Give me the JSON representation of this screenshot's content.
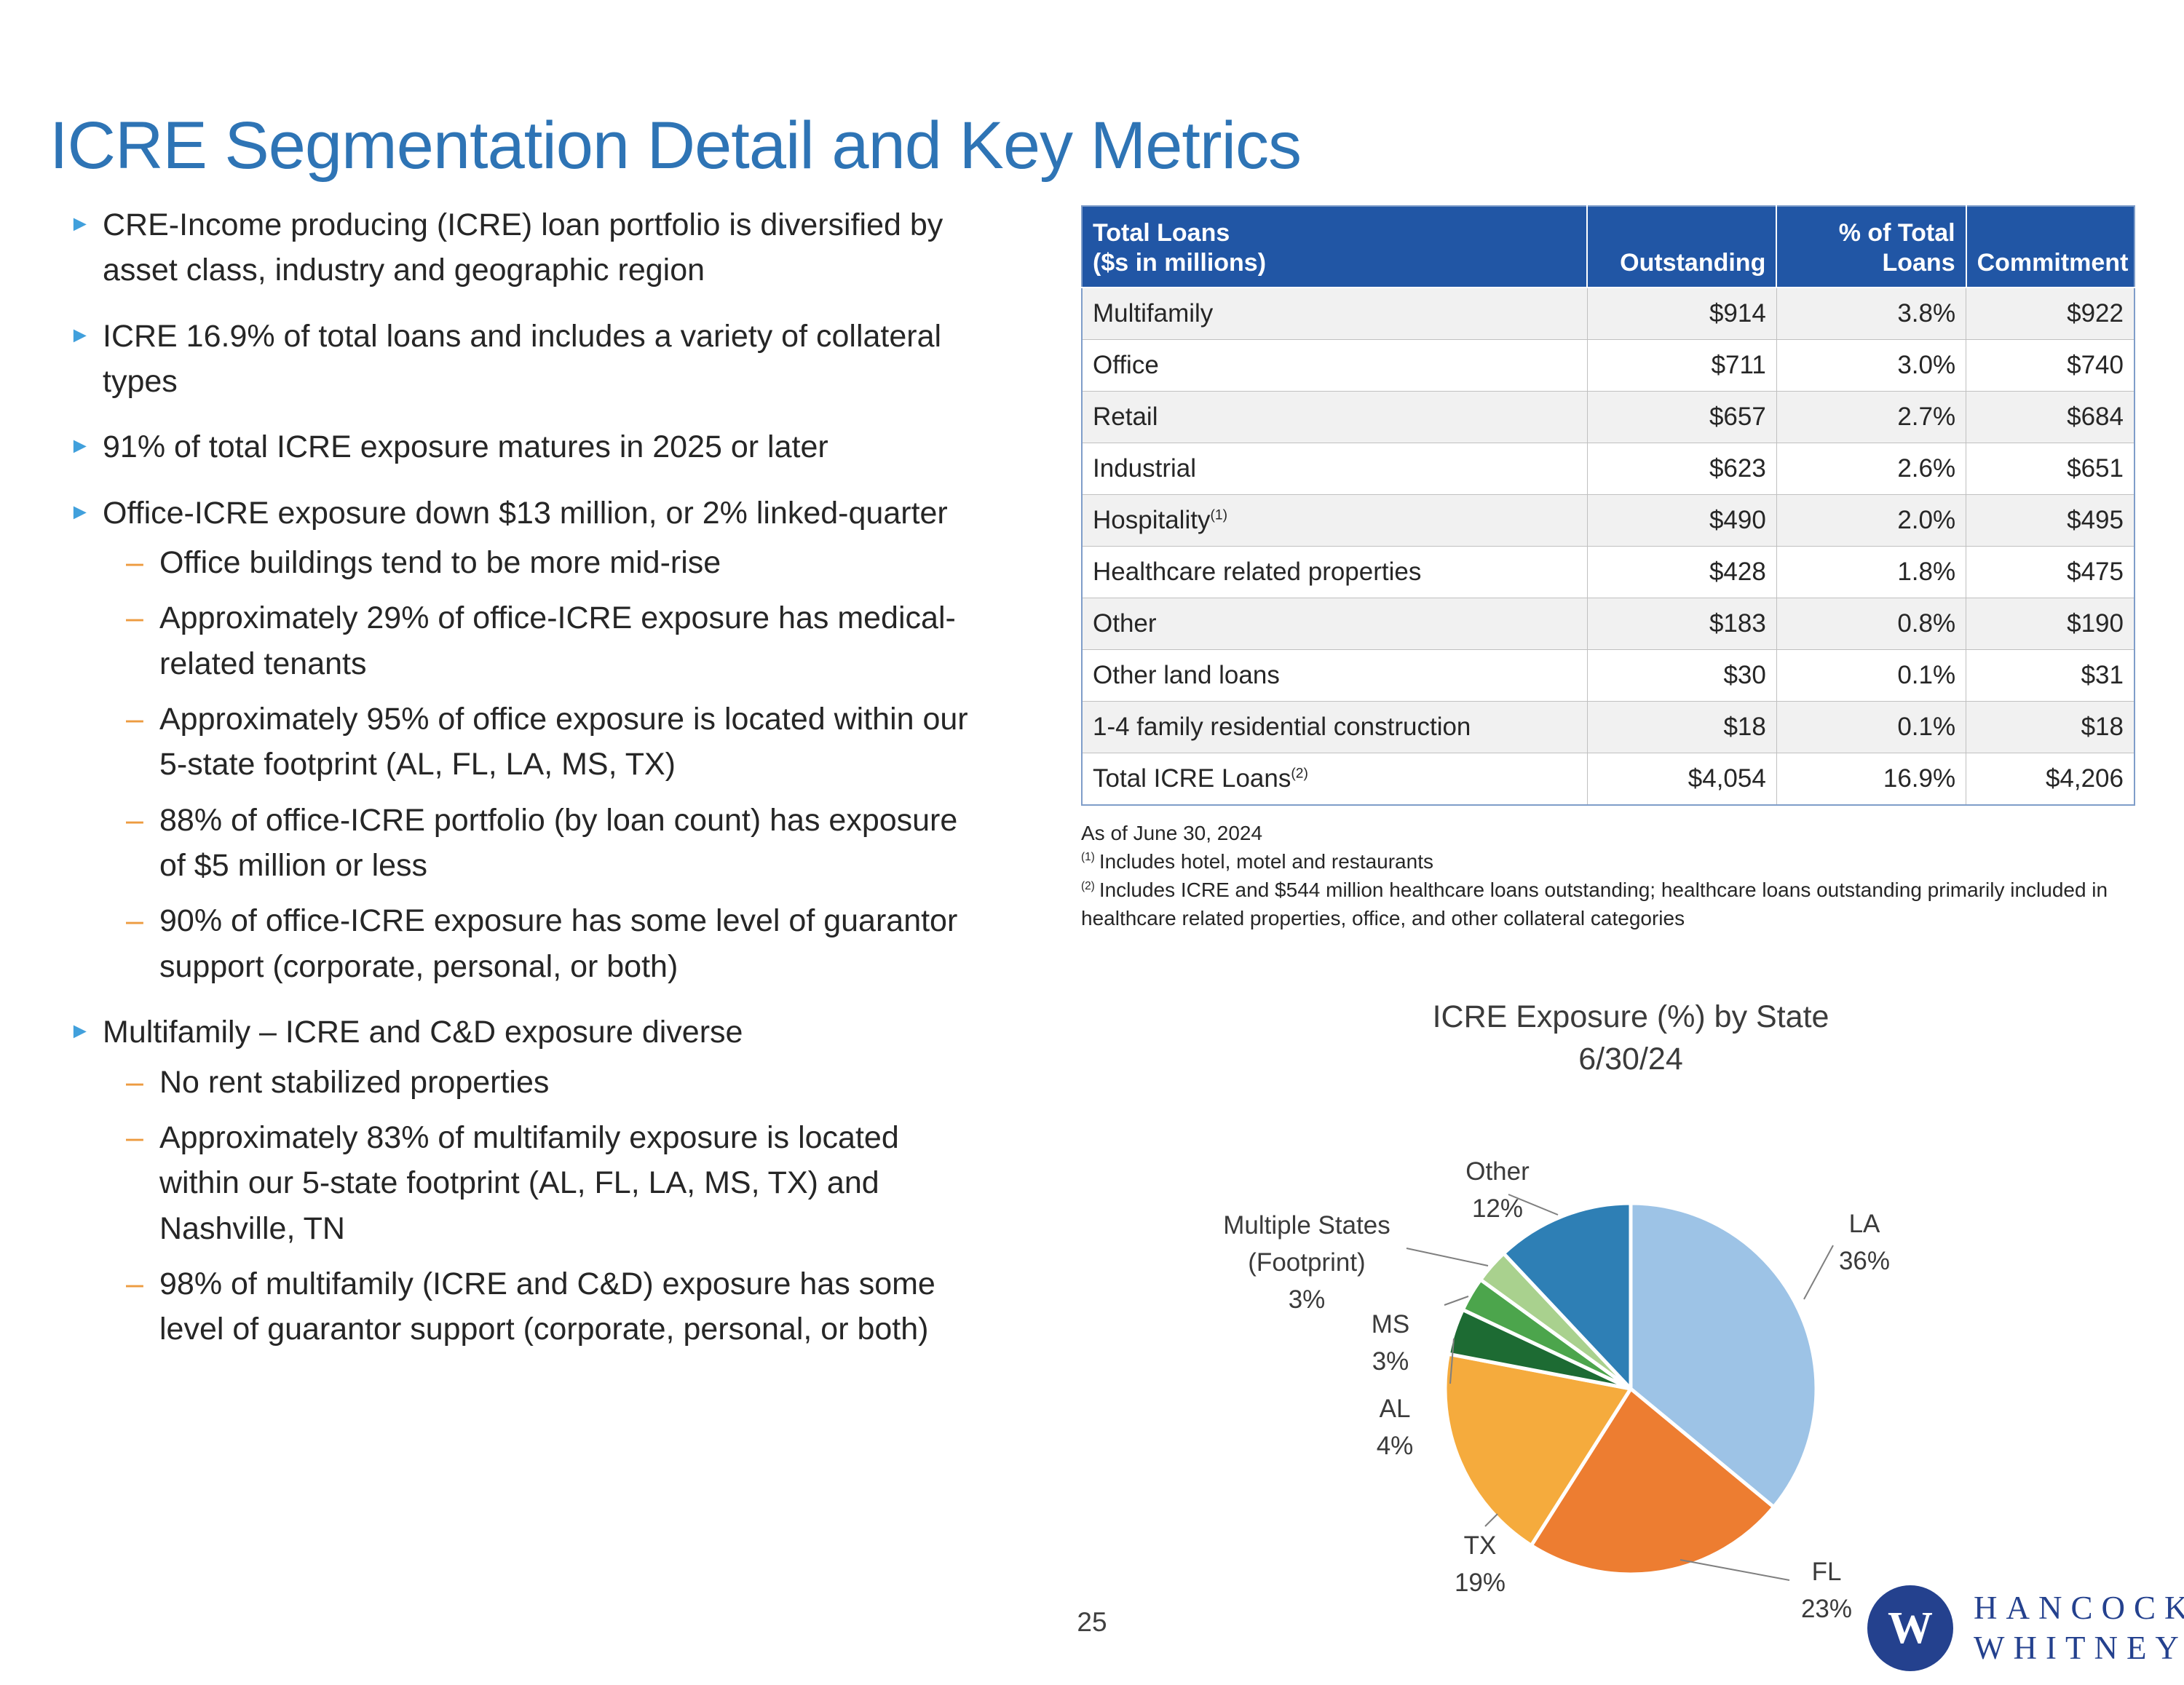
{
  "slide": {
    "title": "ICRE Segmentation Detail and Key Metrics",
    "page_number": "25"
  },
  "colors": {
    "title_blue": "#2E74B5",
    "bullet_triangle_blue": "#41A0DC",
    "sub_dash_orange": "#ED9B40",
    "table_header_bg": "#2156A5",
    "logo_blue": "#24418E"
  },
  "bullets": [
    {
      "level": 1,
      "text": "CRE-Income producing (ICRE) loan portfolio is diversified by asset class, industry and geographic region"
    },
    {
      "level": 1,
      "text": "ICRE 16.9% of total loans and includes a variety of collateral types"
    },
    {
      "level": 1,
      "text": "91% of total ICRE exposure matures in 2025 or later"
    },
    {
      "level": 1,
      "text": "Office-ICRE exposure down $13 million, or 2% linked-quarter"
    },
    {
      "level": 2,
      "text": "Office buildings tend to be more mid-rise"
    },
    {
      "level": 2,
      "text": "Approximately 29% of office-ICRE exposure has medical-related tenants"
    },
    {
      "level": 2,
      "text": "Approximately 95% of office exposure is located within our 5-state footprint (AL, FL, LA, MS, TX)"
    },
    {
      "level": 2,
      "text": "88% of office-ICRE portfolio (by loan count) has exposure of $5 million or less"
    },
    {
      "level": 2,
      "text": "90% of office-ICRE exposure has some level of guarantor support (corporate, personal, or both)"
    },
    {
      "level": 1,
      "text": "Multifamily – ICRE and C&D exposure diverse"
    },
    {
      "level": 2,
      "text": "No rent stabilized properties"
    },
    {
      "level": 2,
      "text": "Approximately 83% of multifamily exposure is located within our 5-state footprint (AL, FL, LA, MS, TX) and Nashville, TN"
    },
    {
      "level": 2,
      "text": "98% of multifamily (ICRE and C&D) exposure has some level of guarantor support (corporate, personal, or both)"
    }
  ],
  "table": {
    "header": {
      "label_line1": "Total Loans",
      "label_line2": "($s in millions)",
      "outstanding": "Outstanding",
      "pct_line1": "% of Total",
      "pct_line2": "Loans",
      "commitment": "Commitment"
    },
    "rows": [
      {
        "label": "Multifamily",
        "sup": "",
        "outstanding": "$914",
        "pct": "3.8%",
        "commitment": "$922"
      },
      {
        "label": "Office",
        "sup": "",
        "outstanding": "$711",
        "pct": "3.0%",
        "commitment": "$740"
      },
      {
        "label": "Retail",
        "sup": "",
        "outstanding": "$657",
        "pct": "2.7%",
        "commitment": "$684"
      },
      {
        "label": "Industrial",
        "sup": "",
        "outstanding": "$623",
        "pct": "2.6%",
        "commitment": "$651"
      },
      {
        "label": "Hospitality",
        "sup": "(1)",
        "outstanding": "$490",
        "pct": "2.0%",
        "commitment": "$495"
      },
      {
        "label": "Healthcare related properties",
        "sup": "",
        "outstanding": "$428",
        "pct": "1.8%",
        "commitment": "$475"
      },
      {
        "label": "Other",
        "sup": "",
        "outstanding": "$183",
        "pct": "0.8%",
        "commitment": "$190"
      },
      {
        "label": "Other land loans",
        "sup": "",
        "outstanding": "$30",
        "pct": "0.1%",
        "commitment": "$31"
      },
      {
        "label": "1-4 family residential construction",
        "sup": "",
        "outstanding": "$18",
        "pct": "0.1%",
        "commitment": "$18"
      }
    ],
    "total": {
      "label": "Total ICRE Loans",
      "sup": "(2)",
      "outstanding": "$4,054",
      "pct": "16.9%",
      "commitment": "$4,206"
    },
    "footnotes": [
      {
        "sup": "",
        "text": "As of June 30, 2024"
      },
      {
        "sup": "(1)",
        "text": "Includes hotel, motel and restaurants"
      },
      {
        "sup": "(2)",
        "text": "Includes ICRE and $544 million healthcare loans outstanding; healthcare loans outstanding primarily included in healthcare related properties, office, and other collateral categories"
      }
    ]
  },
  "chart_data": {
    "type": "pie",
    "title": "ICRE Exposure (%) by State",
    "subtitle": "6/30/24",
    "labels": [
      "LA",
      "FL",
      "TX",
      "AL",
      "MS",
      "Multiple States (Footprint)",
      "Other"
    ],
    "values": [
      36,
      23,
      19,
      4,
      3,
      3,
      12
    ],
    "colors": [
      "#9DC3E6",
      "#ED7D31",
      "#F5AB3D",
      "#1D6B33",
      "#4CA54C",
      "#A9D18E",
      "#2E7FB5"
    ],
    "label_lines": [
      [
        "LA",
        "36%"
      ],
      [
        "FL",
        "23%"
      ],
      [
        "TX",
        "19%"
      ],
      [
        "AL",
        "4%"
      ],
      [
        "MS",
        "3%"
      ],
      [
        "Multiple States",
        "(Footprint)",
        "3%"
      ],
      [
        "Other",
        "12%"
      ]
    ],
    "legend_position": "labels-with-leader-lines",
    "start_angle_deg_from_top": 0,
    "direction": "clockwise"
  },
  "logo": {
    "monogram": "W",
    "line1": "HANCOCK",
    "line2": "WHITNEY"
  }
}
